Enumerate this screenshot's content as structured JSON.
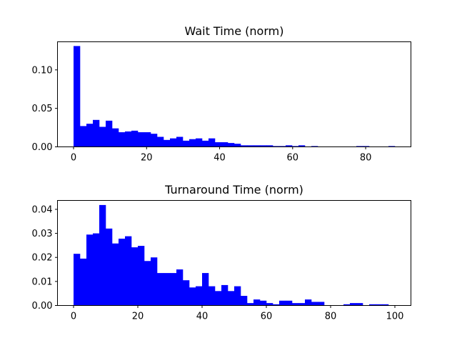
{
  "chart_data": [
    {
      "type": "bar",
      "title": "Wait Time (norm)",
      "xlabel": "",
      "ylabel": "",
      "xlim": [
        -4.4,
        92.4
      ],
      "ylim": [
        0,
        0.1365
      ],
      "bin_width": 1.76,
      "bin_start": 0,
      "x_ticks": [
        0,
        20,
        40,
        60,
        80
      ],
      "y_ticks": [
        0.0,
        0.05,
        0.1
      ],
      "y_tick_labels": [
        "0.00",
        "0.05",
        "0.10"
      ],
      "x_tick_labels": [
        "0",
        "20",
        "40",
        "60",
        "80"
      ],
      "color": "#0000ff",
      "values": [
        0.131,
        0.027,
        0.03,
        0.035,
        0.026,
        0.034,
        0.024,
        0.019,
        0.02,
        0.021,
        0.019,
        0.019,
        0.017,
        0.013,
        0.009,
        0.011,
        0.013,
        0.008,
        0.01,
        0.011,
        0.008,
        0.011,
        0.006,
        0.006,
        0.005,
        0.004,
        0.002,
        0.002,
        0.002,
        0.002,
        0.002,
        0.001,
        0.001,
        0.002,
        0.001,
        0.002,
        0,
        0.001,
        0,
        0,
        0,
        0,
        0,
        0,
        0.001,
        0.001,
        0,
        0,
        0,
        0.001
      ]
    },
    {
      "type": "bar",
      "title": "Turnaround Time (norm)",
      "xlabel": "",
      "ylabel": "",
      "xlim": [
        -5,
        105
      ],
      "ylim": [
        0,
        0.0437
      ],
      "bin_width": 2,
      "bin_start": 0,
      "x_ticks": [
        0,
        20,
        40,
        60,
        80,
        100
      ],
      "y_ticks": [
        0.0,
        0.01,
        0.02,
        0.03,
        0.04
      ],
      "y_tick_labels": [
        "0.00",
        "0.01",
        "0.02",
        "0.03",
        "0.04"
      ],
      "x_tick_labels": [
        "0",
        "20",
        "40",
        "60",
        "80",
        "100"
      ],
      "color": "#0000ff",
      "values": [
        0.0215,
        0.0195,
        0.0295,
        0.03,
        0.0418,
        0.032,
        0.0258,
        0.0278,
        0.0288,
        0.0242,
        0.0248,
        0.0185,
        0.02,
        0.0135,
        0.0135,
        0.0135,
        0.015,
        0.0105,
        0.0075,
        0.008,
        0.0135,
        0.008,
        0.006,
        0.0085,
        0.006,
        0.008,
        0.004,
        0.001,
        0.0025,
        0.002,
        0.001,
        0.0005,
        0.002,
        0.002,
        0.001,
        0.001,
        0.0025,
        0.0015,
        0.0015,
        0,
        0,
        0,
        0.0005,
        0.001,
        0.001,
        0,
        0.0005,
        0.0005,
        0.0005,
        0
      ]
    }
  ]
}
